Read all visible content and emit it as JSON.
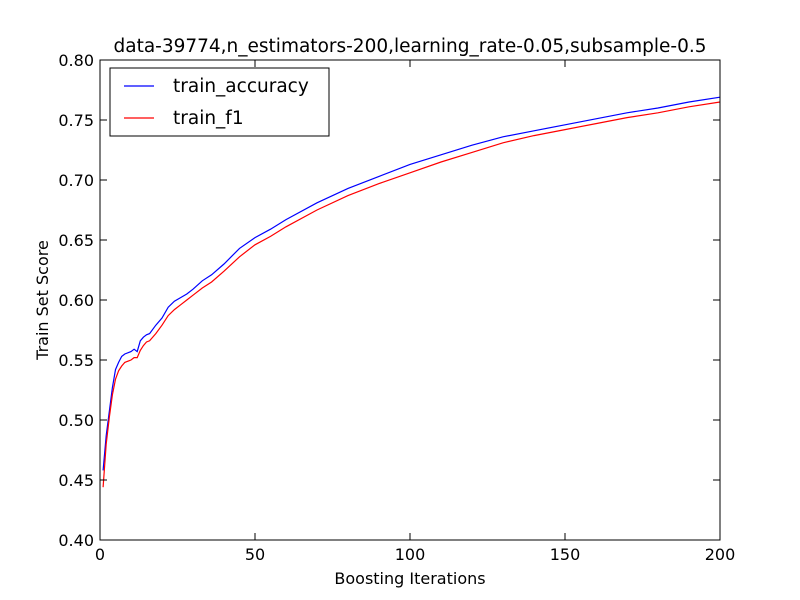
{
  "chart_data": {
    "type": "line",
    "title": "data-39774,n_estimators-200,learning_rate-0.05,subsample-0.5",
    "xlabel": "Boosting Iterations",
    "ylabel": "Train Set Score",
    "xlim": [
      0,
      200
    ],
    "ylim": [
      0.4,
      0.8
    ],
    "xticks": [
      0,
      50,
      100,
      150,
      200
    ],
    "xtick_labels": [
      "0",
      "50",
      "100",
      "150",
      "200"
    ],
    "yticks": [
      0.4,
      0.45,
      0.5,
      0.55,
      0.6,
      0.65,
      0.7,
      0.75,
      0.8
    ],
    "ytick_labels": [
      "0.40",
      "0.45",
      "0.50",
      "0.55",
      "0.60",
      "0.65",
      "0.70",
      "0.75",
      "0.80"
    ],
    "grid": false,
    "legend_position": "upper-left",
    "series": [
      {
        "name": "train_accuracy",
        "color": "#0000ff",
        "x": [
          1,
          2,
          3,
          4,
          5,
          6,
          7,
          8,
          10,
          11,
          12,
          13,
          14,
          15,
          16,
          18,
          20,
          22,
          24,
          26,
          28,
          30,
          33,
          36,
          40,
          45,
          50,
          55,
          60,
          70,
          80,
          90,
          100,
          110,
          120,
          130,
          140,
          150,
          160,
          170,
          180,
          190,
          200
        ],
        "y": [
          0.458,
          0.487,
          0.507,
          0.527,
          0.542,
          0.548,
          0.553,
          0.555,
          0.557,
          0.559,
          0.557,
          0.566,
          0.569,
          0.571,
          0.572,
          0.579,
          0.585,
          0.594,
          0.599,
          0.602,
          0.605,
          0.609,
          0.616,
          0.621,
          0.63,
          0.643,
          0.652,
          0.659,
          0.667,
          0.681,
          0.693,
          0.703,
          0.713,
          0.721,
          0.729,
          0.736,
          0.741,
          0.746,
          0.751,
          0.756,
          0.76,
          0.765,
          0.769
        ]
      },
      {
        "name": "train_f1",
        "color": "#ff0000",
        "x": [
          1,
          2,
          3,
          4,
          5,
          6,
          7,
          8,
          10,
          11,
          12,
          13,
          14,
          15,
          16,
          18,
          20,
          22,
          24,
          26,
          28,
          30,
          33,
          36,
          40,
          45,
          50,
          55,
          60,
          70,
          80,
          90,
          100,
          110,
          120,
          130,
          140,
          150,
          160,
          170,
          180,
          190,
          200
        ],
        "y": [
          0.444,
          0.48,
          0.502,
          0.521,
          0.534,
          0.541,
          0.545,
          0.548,
          0.55,
          0.552,
          0.552,
          0.558,
          0.562,
          0.565,
          0.566,
          0.572,
          0.579,
          0.587,
          0.592,
          0.596,
          0.6,
          0.604,
          0.61,
          0.615,
          0.624,
          0.636,
          0.646,
          0.653,
          0.661,
          0.675,
          0.687,
          0.697,
          0.706,
          0.715,
          0.723,
          0.731,
          0.737,
          0.742,
          0.747,
          0.752,
          0.756,
          0.761,
          0.765
        ]
      }
    ]
  }
}
